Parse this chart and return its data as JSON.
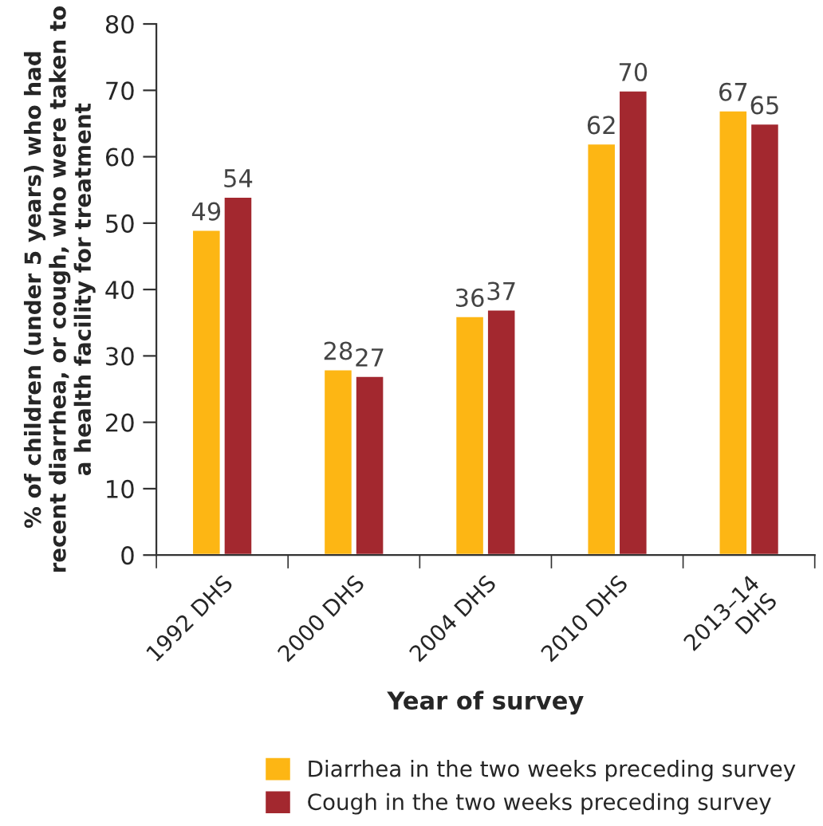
{
  "chart_data": {
    "type": "bar",
    "categories": [
      "1992 DHS",
      "2000 DHS",
      "2004 DHS",
      "2010 DHS",
      "2013–14\nDHS"
    ],
    "series": [
      {
        "name": "Diarrhea in the two weeks preceding survey",
        "color": "#fdb614",
        "values": [
          49,
          28,
          36,
          62,
          67
        ]
      },
      {
        "name": "Cough in the two weeks preceding survey",
        "color": "#a3282f",
        "values": [
          54,
          27,
          37,
          70,
          65
        ]
      }
    ],
    "xlabel": "Year of survey",
    "ylabel": "% of children (under 5 years) who had\nrecent diarrhea, or cough, who were taken to\na health facility for treatment",
    "ylim": [
      0,
      80
    ],
    "yticks": [
      0,
      10,
      20,
      30,
      40,
      50,
      60,
      70,
      80
    ],
    "data_labels": true,
    "grid": false,
    "legend": "bottom"
  }
}
